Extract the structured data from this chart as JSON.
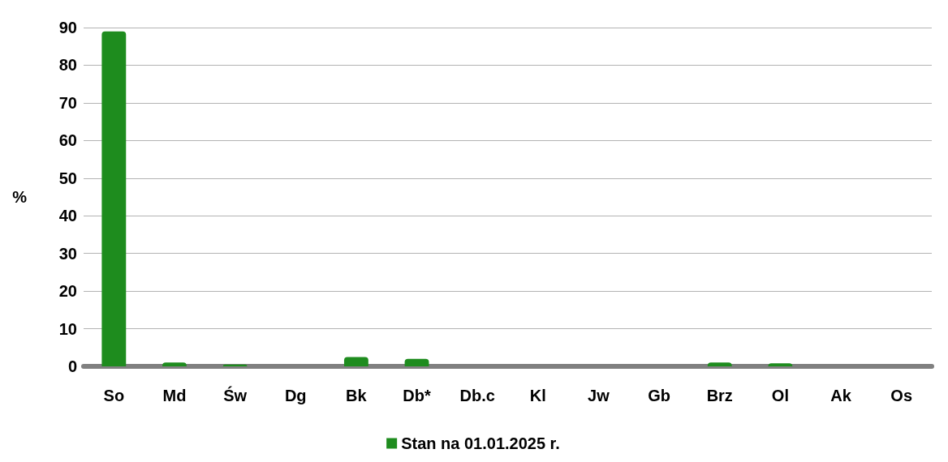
{
  "chart_data": {
    "type": "bar",
    "ylabel": "%",
    "categories": [
      "So",
      "Md",
      "Św",
      "Dg",
      "Bk",
      "Db*",
      "Db.c",
      "Kl",
      "Jw",
      "Gb",
      "Brz",
      "Ol",
      "Ak",
      "Os"
    ],
    "series": [
      {
        "name": "Stan na 01.01.2025 r.",
        "color": "#1e8c1e",
        "values": [
          89,
          1,
          0.5,
          0,
          2.5,
          2,
          0,
          0,
          null,
          0,
          1,
          0.8,
          0,
          0
        ]
      }
    ],
    "ylim": [
      0,
      90
    ],
    "yticks": [
      0,
      10,
      20,
      30,
      40,
      50,
      60,
      70,
      80,
      90
    ],
    "grid": "y",
    "legend": "bottom"
  }
}
